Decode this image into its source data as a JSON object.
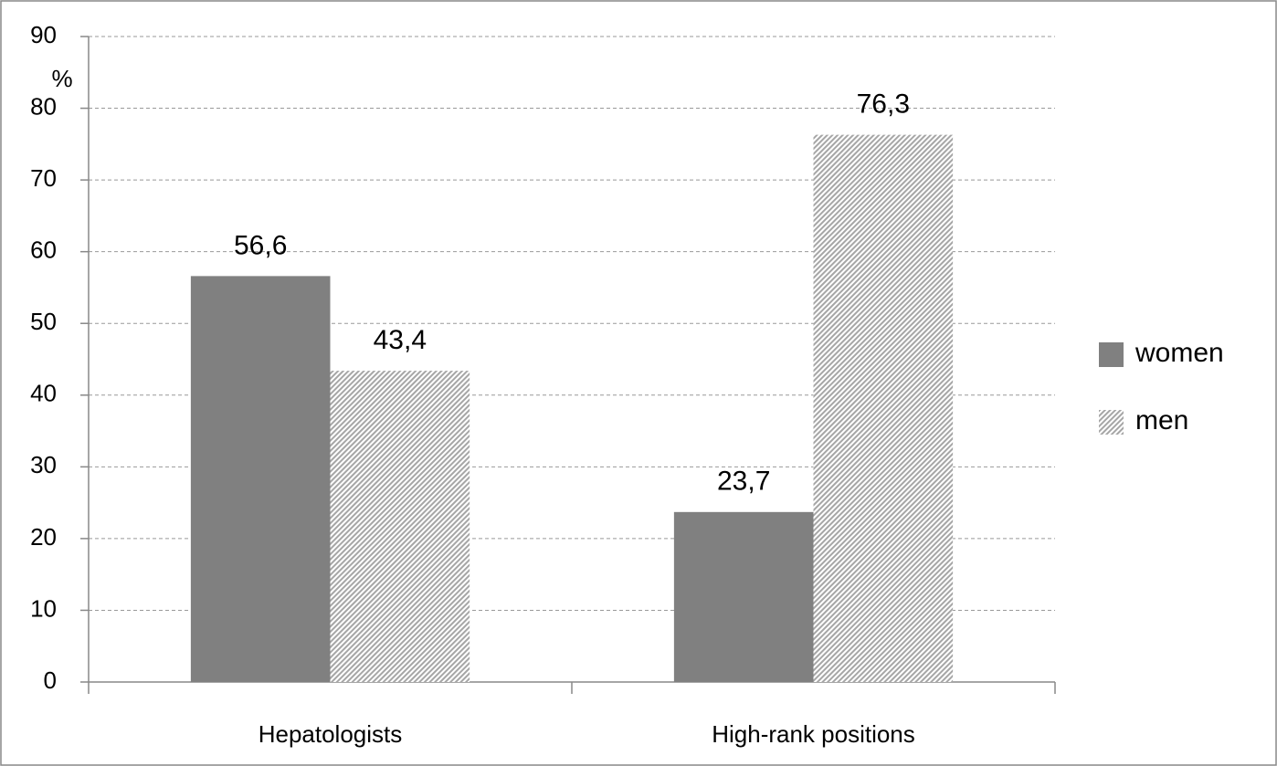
{
  "chart_data": {
    "type": "bar",
    "y_label": "%",
    "categories": [
      "Hepatologists",
      "High-rank positions"
    ],
    "series": [
      {
        "name": "women",
        "color": "#808080",
        "values": [
          56.6,
          23.7
        ],
        "value_labels": [
          "56,6",
          "23,7"
        ]
      },
      {
        "name": "men",
        "color": "#a6a6a6",
        "pattern": "diagonal",
        "values": [
          43.4,
          76.3
        ],
        "value_labels": [
          "43,4",
          "76,3"
        ]
      }
    ],
    "ylim": [
      0,
      90
    ],
    "yticks": [
      0,
      10,
      20,
      30,
      40,
      50,
      60,
      70,
      80,
      90
    ],
    "grid": true,
    "legend": "right"
  }
}
